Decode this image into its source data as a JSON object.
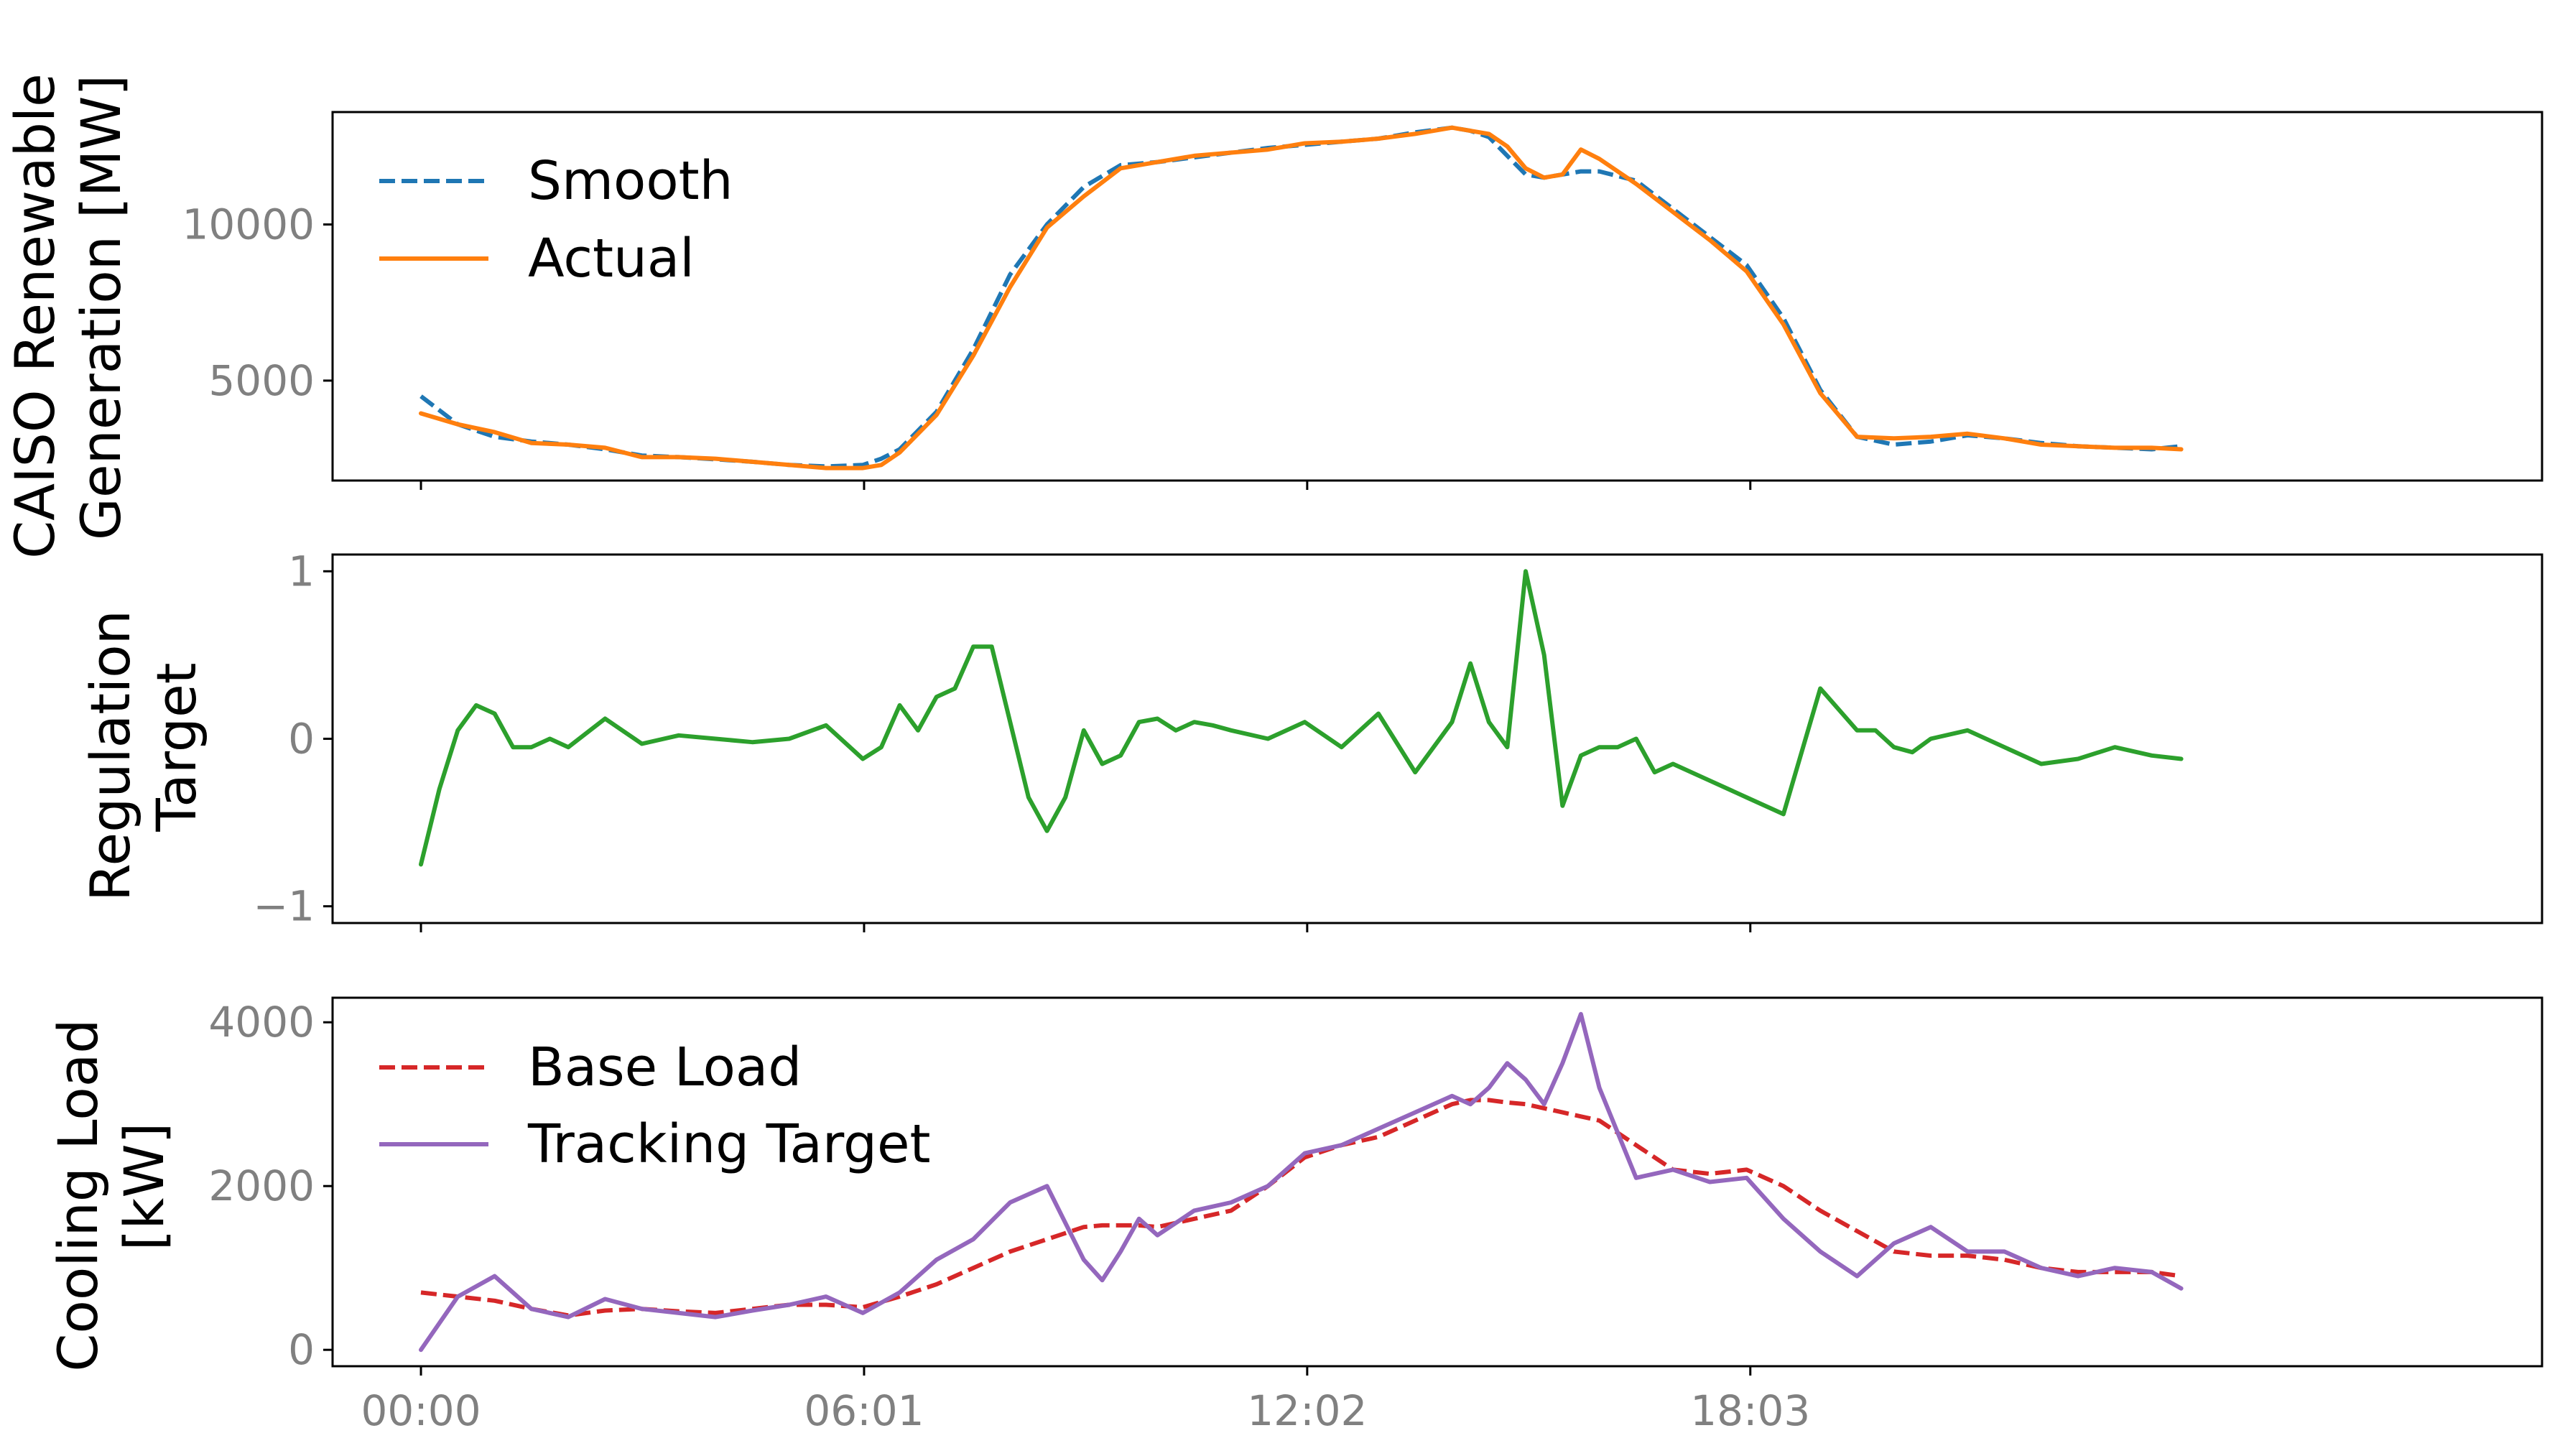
{
  "figure": {
    "x_tick_labels": [
      "00:00",
      "06:01",
      "12:02",
      "18:03"
    ],
    "x_range_hours": [
      -1.2,
      28.8
    ]
  },
  "chart_data": [
    {
      "type": "line",
      "title": "",
      "ylabel": "CAISO Renewable\nGeneration [MW]",
      "ylim": [
        1800,
        13600
      ],
      "y_ticks": [
        5000,
        10000
      ],
      "y_tick_labels": [
        "5000",
        "10000"
      ],
      "grid": false,
      "legend_placement": "upper-left",
      "x_hours": [
        0,
        0.5,
        1,
        1.5,
        2,
        2.5,
        3,
        3.5,
        4,
        4.5,
        5,
        5.5,
        6,
        6.25,
        6.5,
        7,
        7.5,
        8,
        8.5,
        9,
        9.5,
        10,
        10.5,
        11,
        11.5,
        12,
        12.5,
        13,
        13.5,
        14,
        14.25,
        14.5,
        14.75,
        15,
        15.25,
        15.5,
        15.75,
        16,
        16.5,
        17,
        17.5,
        18,
        18.5,
        19,
        19.5,
        20,
        20.5,
        21,
        21.5,
        22,
        22.5,
        23,
        23.5,
        23.9
      ],
      "series": [
        {
          "name": "Smooth",
          "color": "#1f77b4",
          "dash": "dashed",
          "values": [
            4500,
            3600,
            3200,
            3050,
            2950,
            2800,
            2600,
            2550,
            2480,
            2400,
            2300,
            2250,
            2300,
            2500,
            2800,
            4000,
            6000,
            8400,
            10000,
            11200,
            11900,
            12000,
            12150,
            12300,
            12450,
            12550,
            12650,
            12750,
            12950,
            13100,
            13000,
            12800,
            12200,
            11600,
            11500,
            11600,
            11700,
            11700,
            11400,
            10500,
            9600,
            8700,
            7000,
            4700,
            3200,
            2950,
            3050,
            3250,
            3150,
            3000,
            2900,
            2850,
            2800,
            2900
          ]
        },
        {
          "name": "Actual",
          "color": "#ff7f0e",
          "dash": "solid",
          "values": [
            3950,
            3600,
            3350,
            3000,
            2950,
            2850,
            2550,
            2550,
            2500,
            2400,
            2300,
            2200,
            2200,
            2300,
            2700,
            3900,
            5800,
            8000,
            9900,
            10900,
            11800,
            12000,
            12200,
            12300,
            12400,
            12600,
            12650,
            12750,
            12900,
            13100,
            13000,
            12900,
            12500,
            11800,
            11500,
            11600,
            12400,
            12100,
            11300,
            10400,
            9500,
            8500,
            6800,
            4600,
            3200,
            3150,
            3200,
            3300,
            3150,
            2950,
            2900,
            2850,
            2850,
            2800
          ]
        }
      ]
    },
    {
      "type": "line",
      "title": "",
      "ylabel": "Regulation\nTarget",
      "ylim": [
        -1.1,
        1.1
      ],
      "y_ticks": [
        -1,
        0,
        1
      ],
      "y_tick_labels": [
        "−1",
        "0",
        "1"
      ],
      "grid": false,
      "x_hours": [
        0,
        0.25,
        0.5,
        0.75,
        1,
        1.25,
        1.5,
        1.75,
        2,
        2.5,
        3,
        3.5,
        4,
        4.5,
        5,
        5.5,
        6,
        6.25,
        6.5,
        6.75,
        7,
        7.25,
        7.5,
        7.75,
        8,
        8.25,
        8.5,
        8.75,
        9,
        9.25,
        9.5,
        9.75,
        10,
        10.25,
        10.5,
        10.75,
        11,
        11.5,
        12,
        12.5,
        13,
        13.5,
        14,
        14.25,
        14.5,
        14.75,
        15,
        15.25,
        15.5,
        15.75,
        16,
        16.25,
        16.5,
        16.75,
        17,
        17.5,
        18,
        18.5,
        19,
        19.5,
        19.75,
        20,
        20.25,
        20.5,
        21,
        21.5,
        22,
        22.5,
        23,
        23.5,
        23.9
      ],
      "series": [
        {
          "name": "",
          "color": "#2ca02c",
          "dash": "solid",
          "values": [
            -0.75,
            -0.3,
            0.05,
            0.2,
            0.15,
            -0.05,
            -0.05,
            0.0,
            -0.05,
            0.12,
            -0.03,
            0.02,
            0.0,
            -0.02,
            0.0,
            0.08,
            -0.12,
            -0.05,
            0.2,
            0.05,
            0.25,
            0.3,
            0.55,
            0.55,
            0.1,
            -0.35,
            -0.55,
            -0.35,
            0.05,
            -0.15,
            -0.1,
            0.1,
            0.12,
            0.05,
            0.1,
            0.08,
            0.05,
            0.0,
            0.1,
            -0.05,
            0.15,
            -0.2,
            0.1,
            0.45,
            0.1,
            -0.05,
            1.0,
            0.5,
            -0.4,
            -0.1,
            -0.05,
            -0.05,
            0.0,
            -0.2,
            -0.15,
            -0.25,
            -0.35,
            -0.45,
            0.3,
            0.05,
            0.05,
            -0.05,
            -0.08,
            0.0,
            0.05,
            -0.05,
            -0.15,
            -0.12,
            -0.05,
            -0.1,
            -0.12
          ]
        }
      ]
    },
    {
      "type": "line",
      "title": "",
      "ylabel": "Cooling Load\n[kW]",
      "ylim": [
        -200,
        4300
      ],
      "y_ticks": [
        0,
        2000,
        4000
      ],
      "y_tick_labels": [
        "0",
        "2000",
        "4000"
      ],
      "grid": false,
      "legend_placement": "upper-left",
      "x_hours": [
        0,
        0.5,
        1,
        1.5,
        2,
        2.5,
        3,
        3.5,
        4,
        4.5,
        5,
        5.5,
        6,
        6.5,
        7,
        7.5,
        8,
        8.5,
        9,
        9.25,
        9.5,
        9.75,
        10,
        10.5,
        11,
        11.5,
        12,
        12.5,
        13,
        13.5,
        14,
        14.25,
        14.5,
        14.75,
        15,
        15.25,
        15.5,
        15.75,
        16,
        16.5,
        17,
        17.5,
        18,
        18.5,
        19,
        19.5,
        20,
        20.5,
        21,
        21.5,
        22,
        22.5,
        23,
        23.5,
        23.9
      ],
      "series": [
        {
          "name": "Base Load",
          "color": "#d62728",
          "dash": "dashed",
          "values": [
            700,
            650,
            600,
            500,
            420,
            480,
            500,
            470,
            450,
            500,
            550,
            550,
            520,
            650,
            800,
            1000,
            1200,
            1350,
            1500,
            1520,
            1520,
            1520,
            1500,
            1600,
            1700,
            2000,
            2350,
            2500,
            2600,
            2800,
            3000,
            3050,
            3050,
            3020,
            3000,
            2950,
            2900,
            2850,
            2800,
            2500,
            2200,
            2150,
            2200,
            2000,
            1700,
            1450,
            1200,
            1150,
            1150,
            1100,
            1000,
            950,
            950,
            950,
            900
          ]
        },
        {
          "name": "Tracking Target",
          "color": "#9467bd",
          "dash": "solid",
          "values": [
            0,
            650,
            900,
            500,
            400,
            620,
            500,
            450,
            400,
            480,
            550,
            650,
            450,
            700,
            1100,
            1350,
            1800,
            2000,
            1100,
            850,
            1200,
            1600,
            1400,
            1700,
            1800,
            2000,
            2400,
            2500,
            2700,
            2900,
            3100,
            3000,
            3200,
            3500,
            3300,
            3000,
            3500,
            4100,
            3200,
            2100,
            2200,
            2050,
            2100,
            1600,
            1200,
            900,
            1300,
            1500,
            1200,
            1200,
            1000,
            900,
            1000,
            950,
            750
          ]
        }
      ]
    }
  ]
}
